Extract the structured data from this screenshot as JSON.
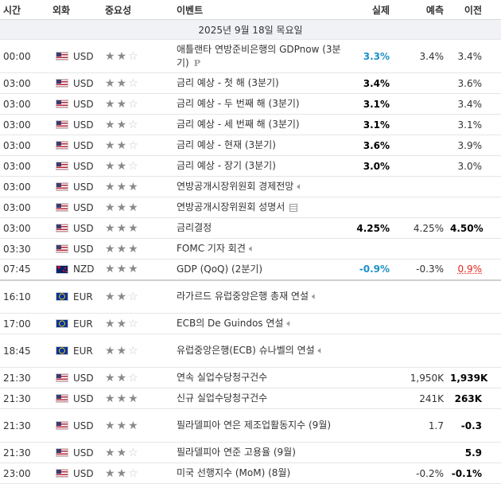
{
  "headers": {
    "time": "시간",
    "currency": "외화",
    "importance": "중요성",
    "event": "이벤트",
    "actual": "실제",
    "forecast": "예측",
    "previous": "이전"
  },
  "date_label": "2025년 9월 18일 목요일",
  "colors": {
    "blue": "#1e90c8",
    "red": "#e0281e"
  },
  "rows": [
    {
      "time": "00:00",
      "flag": "us",
      "currency": "USD",
      "stars": 2,
      "event": "애틀랜타 연방준비은행의 GDPnow (3분기)",
      "icon": "p-icon",
      "actual": "3.3%",
      "actual_style": "blue",
      "forecast": "3.4%",
      "previous": "3.4%",
      "previous_style": "",
      "h": 42
    },
    {
      "time": "03:00",
      "flag": "us",
      "currency": "USD",
      "stars": 2,
      "event": "금리 예상 - 첫 해 (3분기)",
      "icon": "",
      "actual": "3.4%",
      "actual_style": "bold",
      "forecast": "",
      "previous": "3.6%",
      "previous_style": "",
      "h": 26
    },
    {
      "time": "03:00",
      "flag": "us",
      "currency": "USD",
      "stars": 2,
      "event": "금리 예상 - 두 번째 해 (3분기)",
      "icon": "",
      "actual": "3.1%",
      "actual_style": "bold",
      "forecast": "",
      "previous": "3.4%",
      "previous_style": "",
      "h": 26
    },
    {
      "time": "03:00",
      "flag": "us",
      "currency": "USD",
      "stars": 2,
      "event": "금리 예상 - 세 번째 해 (3분기)",
      "icon": "",
      "actual": "3.1%",
      "actual_style": "bold",
      "forecast": "",
      "previous": "3.1%",
      "previous_style": "",
      "h": 26
    },
    {
      "time": "03:00",
      "flag": "us",
      "currency": "USD",
      "stars": 2,
      "event": "금리 예상 - 현재 (3분기)",
      "icon": "",
      "actual": "3.6%",
      "actual_style": "bold",
      "forecast": "",
      "previous": "3.9%",
      "previous_style": "",
      "h": 26
    },
    {
      "time": "03:00",
      "flag": "us",
      "currency": "USD",
      "stars": 2,
      "event": "금리 예상 - 장기 (3분기)",
      "icon": "",
      "actual": "3.0%",
      "actual_style": "bold",
      "forecast": "",
      "previous": "3.0%",
      "previous_style": "",
      "h": 26
    },
    {
      "time": "03:00",
      "flag": "us",
      "currency": "USD",
      "stars": 3,
      "event": "연방공개시장위원회 경제전망",
      "icon": "speaker-icon",
      "actual": "",
      "actual_style": "",
      "forecast": "",
      "previous": "",
      "previous_style": "",
      "h": 26
    },
    {
      "time": "03:00",
      "flag": "us",
      "currency": "USD",
      "stars": 3,
      "event": "연방공개시장위원회 성명서",
      "icon": "document-icon",
      "actual": "",
      "actual_style": "",
      "forecast": "",
      "previous": "",
      "previous_style": "",
      "h": 26
    },
    {
      "time": "03:00",
      "flag": "us",
      "currency": "USD",
      "stars": 3,
      "event": "금리결정",
      "icon": "",
      "actual": "4.25%",
      "actual_style": "bold",
      "forecast": "4.25%",
      "previous": "4.50%",
      "previous_style": "bold",
      "h": 26
    },
    {
      "time": "03:30",
      "flag": "us",
      "currency": "USD",
      "stars": 3,
      "event": "FOMC 기자 회견",
      "icon": "speaker-icon",
      "actual": "",
      "actual_style": "",
      "forecast": "",
      "previous": "",
      "previous_style": "",
      "h": 26
    },
    {
      "time": "07:45",
      "flag": "nz",
      "currency": "NZD",
      "stars": 3,
      "event": "GDP (QoQ) (2분기)",
      "icon": "",
      "actual": "-0.9%",
      "actual_style": "blue",
      "forecast": "-0.3%",
      "previous": "0.9%",
      "previous_style": "red",
      "h": 26,
      "sep": true
    },
    {
      "time": "16:10",
      "flag": "eu",
      "currency": "EUR",
      "stars": 2,
      "event": "라가르드 유럽중앙은행 총재 연설",
      "icon": "speaker-icon",
      "actual": "",
      "actual_style": "",
      "forecast": "",
      "previous": "",
      "previous_style": "",
      "h": 42
    },
    {
      "time": "17:00",
      "flag": "eu",
      "currency": "EUR",
      "stars": 2,
      "event": "ECB의 De Guindos 연설",
      "icon": "speaker-icon",
      "actual": "",
      "actual_style": "",
      "forecast": "",
      "previous": "",
      "previous_style": "",
      "h": 26
    },
    {
      "time": "18:45",
      "flag": "eu",
      "currency": "EUR",
      "stars": 2,
      "event": "유럽중앙은행(ECB) 슈나벨의 연설",
      "icon": "speaker-icon",
      "actual": "",
      "actual_style": "",
      "forecast": "",
      "previous": "",
      "previous_style": "",
      "h": 42
    },
    {
      "time": "21:30",
      "flag": "us",
      "currency": "USD",
      "stars": 2,
      "event": "연속 실업수당청구건수",
      "icon": "",
      "actual": "",
      "actual_style": "",
      "forecast": "1,950K",
      "previous": "1,939K",
      "previous_style": "bold",
      "h": 26
    },
    {
      "time": "21:30",
      "flag": "us",
      "currency": "USD",
      "stars": 3,
      "event": "신규 실업수당청구건수",
      "icon": "",
      "actual": "",
      "actual_style": "",
      "forecast": "241K",
      "previous": "263K",
      "previous_style": "bold",
      "h": 26
    },
    {
      "time": "21:30",
      "flag": "us",
      "currency": "USD",
      "stars": 3,
      "event": "필라델피아 연은 제조업활동지수 (9월)",
      "icon": "",
      "actual": "",
      "actual_style": "",
      "forecast": "1.7",
      "previous": "-0.3",
      "previous_style": "bold",
      "h": 42
    },
    {
      "time": "21:30",
      "flag": "us",
      "currency": "USD",
      "stars": 2,
      "event": "필라델피아 연준 고용율 (9월)",
      "icon": "",
      "actual": "",
      "actual_style": "",
      "forecast": "",
      "previous": "5.9",
      "previous_style": "bold",
      "h": 26
    },
    {
      "time": "23:00",
      "flag": "us",
      "currency": "USD",
      "stars": 2,
      "event": "미국 선행지수 (MoM) (8월)",
      "icon": "",
      "actual": "",
      "actual_style": "",
      "forecast": "-0.2%",
      "previous": "-0.1%",
      "previous_style": "bold",
      "h": 26
    }
  ]
}
